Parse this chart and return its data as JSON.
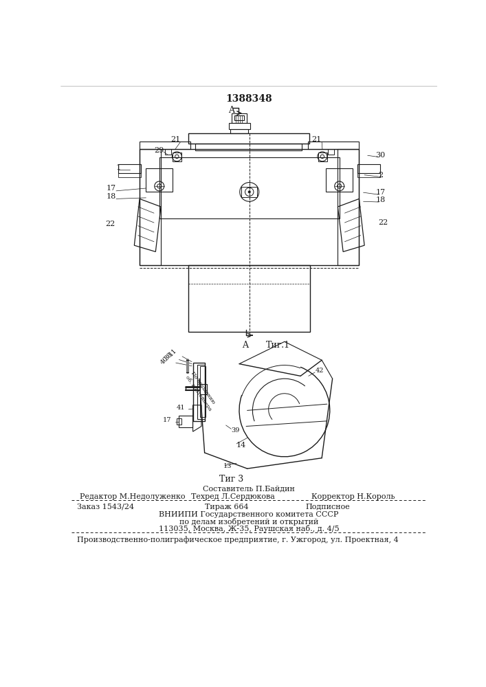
{
  "patent_number": "1388348",
  "fig1_label": "Τиг.1",
  "fig3_label": "Τиг 3",
  "bg_color": "#ffffff",
  "text_color": "#000000",
  "footer": {
    "composer": "Составитель П.Байдин",
    "editor": "Редактор М.Недолуженко",
    "techred": "Техред Л.Сердюкова",
    "corrector": "Корректор Н.Король",
    "order": "Заказ 1543/24",
    "tirazh": "Тираж 664",
    "podpisnoe": "Подписное",
    "vnipi_line1": "ВНИИПИ Государственного комитета СССР",
    "vnipi_line2": "по делам изобретений и открытий",
    "vnipi_line3": "113035, Москва, Ж-35, Раушская наб., д. 4/5",
    "proizv": "Производственно-полиграфическое предприятие, г. Ужгород, ул. Проектная, 4"
  }
}
